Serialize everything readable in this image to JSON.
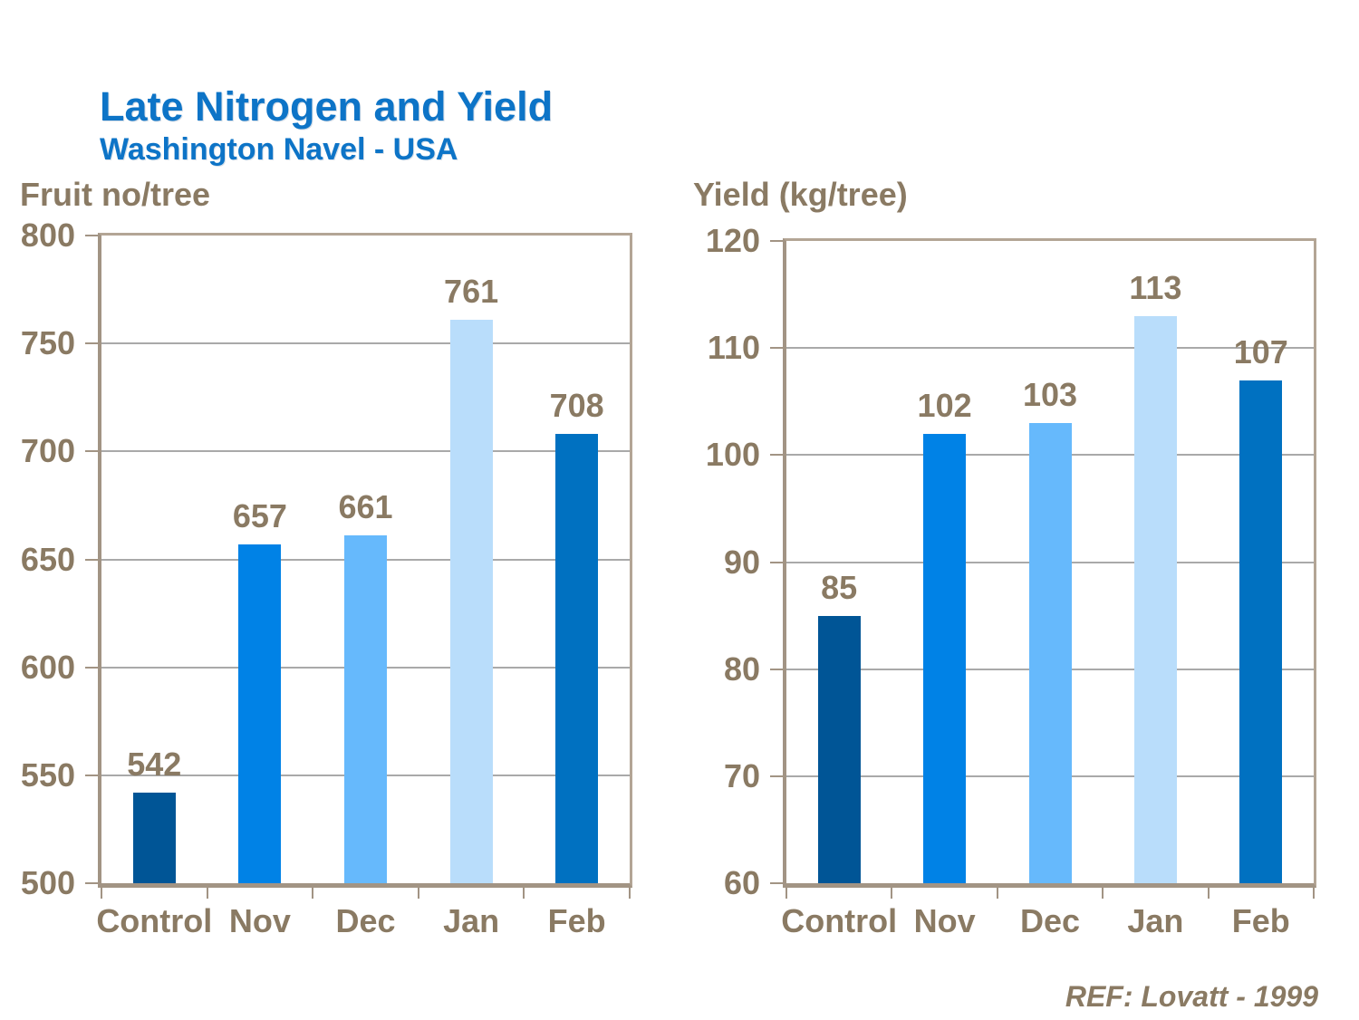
{
  "page": {
    "title": "Late Nitrogen and Yield",
    "subtitle": "Washington Navel - USA",
    "reference": "REF: Lovatt - 1999",
    "colors": {
      "title_blue": "#0d74c7",
      "label_brown": "#8a7a63",
      "gridline_gray": "#a9a9a9",
      "frame_tan": "#b3a595",
      "axis_tan": "#a29484",
      "background": "#ffffff"
    }
  },
  "chart_data": [
    {
      "type": "bar",
      "title": "Fruit no/tree",
      "categories": [
        "Control",
        "Nov",
        "Dec",
        "Jan",
        "Feb"
      ],
      "values": [
        542,
        657,
        661,
        761,
        708
      ],
      "data_labels": [
        "542",
        "657",
        "661",
        "761",
        "708"
      ],
      "bar_colors": [
        "#005596",
        "#0082e6",
        "#66b9fc",
        "#b9ddfb",
        "#0071c1"
      ],
      "ylim": [
        500,
        800
      ],
      "yticks": [
        500,
        550,
        600,
        650,
        700,
        750,
        800
      ],
      "ytick_interval": 50,
      "xlabel": "",
      "ylabel": "Fruit no/tree",
      "grid": true,
      "legend": "none"
    },
    {
      "type": "bar",
      "title": "Yield (kg/tree)",
      "categories": [
        "Control",
        "Nov",
        "Dec",
        "Jan",
        "Feb"
      ],
      "values": [
        85,
        102,
        103,
        113,
        107
      ],
      "data_labels": [
        "85",
        "102",
        "103",
        "113",
        "107"
      ],
      "bar_colors": [
        "#005596",
        "#0082e6",
        "#66b9fc",
        "#b9ddfb",
        "#0071c1"
      ],
      "ylim": [
        60,
        120
      ],
      "yticks": [
        60,
        70,
        80,
        90,
        100,
        110,
        120
      ],
      "ytick_interval": 10,
      "xlabel": "",
      "ylabel": "Yield (kg/tree)",
      "grid": true,
      "legend": "none"
    }
  ]
}
